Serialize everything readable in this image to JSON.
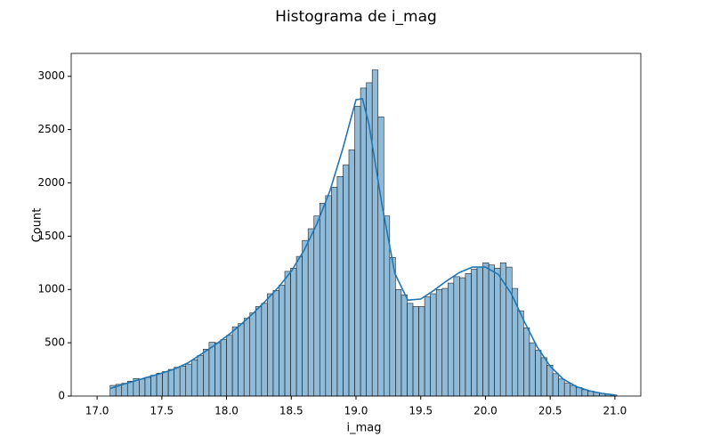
{
  "chart_data": {
    "type": "histogram",
    "title": "Histograma de i_mag",
    "xlabel": "i_mag",
    "ylabel": "Count",
    "bins": [
      17.1,
      17.145,
      17.19,
      17.235,
      17.28,
      17.325,
      17.37,
      17.415,
      17.46,
      17.505,
      17.55,
      17.595,
      17.64,
      17.685,
      17.73,
      17.775,
      17.82,
      17.865,
      17.91,
      17.955,
      18.0,
      18.045,
      18.09,
      18.135,
      18.18,
      18.225,
      18.27,
      18.315,
      18.36,
      18.405,
      18.45,
      18.495,
      18.54,
      18.585,
      18.63,
      18.675,
      18.72,
      18.765,
      18.81,
      18.855,
      18.9,
      18.945,
      18.99,
      19.035,
      19.08,
      19.125,
      19.17,
      19.215,
      19.26,
      19.305,
      19.35,
      19.395,
      19.44,
      19.485,
      19.53,
      19.575,
      19.62,
      19.665,
      19.71,
      19.755,
      19.8,
      19.845,
      19.89,
      19.935,
      19.98,
      20.025,
      20.07,
      20.115,
      20.16,
      20.205,
      20.25,
      20.295,
      20.34,
      20.385,
      20.43,
      20.475,
      20.52,
      20.565,
      20.61,
      20.655,
      20.7,
      20.745,
      20.79,
      20.835,
      20.88,
      20.925,
      20.97,
      21.015
    ],
    "values": [
      100,
      110,
      120,
      140,
      165,
      160,
      175,
      195,
      215,
      230,
      250,
      270,
      280,
      300,
      340,
      380,
      440,
      505,
      500,
      530,
      570,
      650,
      680,
      730,
      780,
      840,
      870,
      960,
      990,
      1040,
      1170,
      1200,
      1310,
      1460,
      1570,
      1690,
      1810,
      1880,
      1960,
      2060,
      2170,
      2310,
      2720,
      2890,
      2940,
      3060,
      2620,
      1690,
      1300,
      1000,
      950,
      870,
      840,
      840,
      930,
      960,
      1000,
      1010,
      1060,
      1120,
      1110,
      1150,
      1190,
      1210,
      1250,
      1230,
      1200,
      1250,
      1210,
      1010,
      800,
      640,
      500,
      430,
      360,
      290,
      210,
      160,
      120,
      100,
      80,
      60,
      45,
      35,
      25,
      15,
      10
    ],
    "color": "#1f77b4",
    "kde": {
      "x": [
        17.1,
        17.2,
        17.3,
        17.4,
        17.5,
        17.6,
        17.7,
        17.8,
        17.9,
        18.0,
        18.1,
        18.2,
        18.3,
        18.4,
        18.5,
        18.6,
        18.7,
        18.8,
        18.9,
        19.0,
        19.05,
        19.1,
        19.2,
        19.3,
        19.4,
        19.5,
        19.6,
        19.7,
        19.8,
        19.9,
        20.0,
        20.1,
        20.2,
        20.3,
        20.4,
        20.5,
        20.6,
        20.7,
        20.8,
        20.9,
        21.0
      ],
      "values": [
        70,
        110,
        145,
        180,
        215,
        255,
        310,
        390,
        470,
        560,
        660,
        770,
        890,
        1020,
        1170,
        1370,
        1620,
        1930,
        2330,
        2780,
        2790,
        2550,
        1800,
        1150,
        900,
        910,
        990,
        1080,
        1160,
        1210,
        1210,
        1140,
        960,
        700,
        460,
        280,
        160,
        90,
        50,
        25,
        10
      ]
    },
    "xlim": [
      16.8,
      21.2
    ],
    "ylim": [
      0,
      3215
    ],
    "xticks": [
      {
        "value": 17,
        "label": "17.0"
      },
      {
        "value": 17.5,
        "label": "17.5"
      },
      {
        "value": 18,
        "label": "18.0"
      },
      {
        "value": 18.5,
        "label": "18.5"
      },
      {
        "value": 19,
        "label": "19.0"
      },
      {
        "value": 19.5,
        "label": "19.5"
      },
      {
        "value": 20,
        "label": "20.0"
      },
      {
        "value": 20.5,
        "label": "20.5"
      },
      {
        "value": 21,
        "label": "21.0"
      }
    ],
    "yticks": [
      0,
      500,
      1000,
      1500,
      2000,
      2500,
      3000
    ]
  }
}
